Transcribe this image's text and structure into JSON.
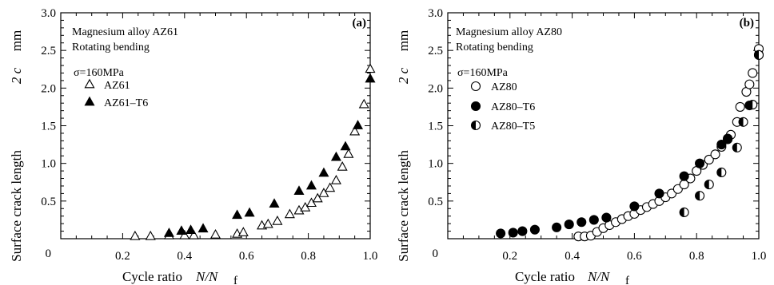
{
  "chart_data": [
    {
      "type": "scatter",
      "panel_label": "(a)",
      "xlabel": "Cycle ratio",
      "xlabel_var": "N/N",
      "xlabel_sub": "f",
      "ylabel": "Surface crack length",
      "ylabel_var": "2 c",
      "ylabel_unit": "mm",
      "xlim": [
        0,
        1.0
      ],
      "ylim": [
        0,
        3.0
      ],
      "x_ticks": [
        "0",
        "0.2",
        "0.4",
        "0.6",
        "0.8",
        "1.0"
      ],
      "y_ticks": [
        "0.5",
        "1.0",
        "1.5",
        "2.0",
        "2.5",
        "3.0"
      ],
      "grid": false,
      "legend_position": "top-left",
      "annotations": [
        "Magnesium alloy AZ61",
        "Rotating bending"
      ],
      "stress": "σ=160MPa",
      "series": [
        {
          "name": "AZ61",
          "marker": "triangle-open",
          "points": [
            [
              0.24,
              0.03
            ],
            [
              0.29,
              0.03
            ],
            [
              0.35,
              0.04
            ],
            [
              0.4,
              0.04
            ],
            [
              0.43,
              0.04
            ],
            [
              0.5,
              0.05
            ],
            [
              0.57,
              0.06
            ],
            [
              0.59,
              0.08
            ],
            [
              0.65,
              0.17
            ],
            [
              0.67,
              0.19
            ],
            [
              0.7,
              0.23
            ],
            [
              0.74,
              0.32
            ],
            [
              0.77,
              0.37
            ],
            [
              0.79,
              0.41
            ],
            [
              0.81,
              0.47
            ],
            [
              0.83,
              0.53
            ],
            [
              0.85,
              0.6
            ],
            [
              0.87,
              0.67
            ],
            [
              0.89,
              0.77
            ],
            [
              0.91,
              0.95
            ],
            [
              0.93,
              1.12
            ],
            [
              0.95,
              1.42
            ],
            [
              0.98,
              1.78
            ],
            [
              1.0,
              2.25
            ]
          ]
        },
        {
          "name": "AZ61–T6",
          "marker": "triangle-filled",
          "points": [
            [
              0.35,
              0.07
            ],
            [
              0.39,
              0.1
            ],
            [
              0.42,
              0.11
            ],
            [
              0.46,
              0.13
            ],
            [
              0.57,
              0.31
            ],
            [
              0.61,
              0.34
            ],
            [
              0.69,
              0.46
            ],
            [
              0.77,
              0.63
            ],
            [
              0.81,
              0.7
            ],
            [
              0.85,
              0.87
            ],
            [
              0.89,
              1.08
            ],
            [
              0.92,
              1.22
            ],
            [
              0.96,
              1.5
            ],
            [
              1.0,
              2.12
            ]
          ]
        }
      ]
    },
    {
      "type": "scatter",
      "panel_label": "(b)",
      "xlabel": "Cycle ratio",
      "xlabel_var": "N/N",
      "xlabel_sub": "f",
      "ylabel": "Surface crack length",
      "ylabel_var": "2 c",
      "ylabel_unit": "mm",
      "xlim": [
        0,
        1.0
      ],
      "ylim": [
        0,
        3.0
      ],
      "x_ticks": [
        "0",
        "0.2",
        "0.4",
        "0.6",
        "0.8",
        "1.0"
      ],
      "y_ticks": [
        "0.5",
        "1.0",
        "1.5",
        "2.0",
        "2.5",
        "3.0"
      ],
      "grid": false,
      "legend_position": "top-left",
      "annotations": [
        "Magnesium alloy AZ80",
        "Rotating bending"
      ],
      "stress": "σ=160MPa",
      "series": [
        {
          "name": "AZ80",
          "marker": "circle-open",
          "points": [
            [
              0.42,
              0.03
            ],
            [
              0.44,
              0.03
            ],
            [
              0.46,
              0.04
            ],
            [
              0.48,
              0.09
            ],
            [
              0.5,
              0.14
            ],
            [
              0.52,
              0.18
            ],
            [
              0.54,
              0.22
            ],
            [
              0.56,
              0.26
            ],
            [
              0.58,
              0.3
            ],
            [
              0.6,
              0.33
            ],
            [
              0.62,
              0.38
            ],
            [
              0.64,
              0.42
            ],
            [
              0.66,
              0.46
            ],
            [
              0.68,
              0.5
            ],
            [
              0.7,
              0.55
            ],
            [
              0.72,
              0.6
            ],
            [
              0.74,
              0.66
            ],
            [
              0.76,
              0.72
            ],
            [
              0.78,
              0.8
            ],
            [
              0.8,
              0.9
            ],
            [
              0.82,
              0.98
            ],
            [
              0.84,
              1.05
            ],
            [
              0.86,
              1.12
            ],
            [
              0.88,
              1.22
            ],
            [
              0.9,
              1.32
            ],
            [
              0.91,
              1.38
            ],
            [
              0.93,
              1.55
            ],
            [
              0.94,
              1.75
            ],
            [
              0.96,
              1.95
            ],
            [
              0.97,
              2.05
            ],
            [
              0.98,
              2.2
            ],
            [
              1.0,
              2.52
            ]
          ]
        },
        {
          "name": "AZ80–T6",
          "marker": "circle-filled",
          "points": [
            [
              0.17,
              0.07
            ],
            [
              0.21,
              0.08
            ],
            [
              0.24,
              0.1
            ],
            [
              0.28,
              0.12
            ],
            [
              0.35,
              0.15
            ],
            [
              0.39,
              0.19
            ],
            [
              0.43,
              0.22
            ],
            [
              0.47,
              0.25
            ],
            [
              0.51,
              0.28
            ],
            [
              0.6,
              0.43
            ],
            [
              0.68,
              0.6
            ],
            [
              0.76,
              0.83
            ],
            [
              0.81,
              1.0
            ],
            [
              0.88,
              1.25
            ],
            [
              0.9,
              1.33
            ],
            [
              0.97,
              1.77
            ],
            [
              1.0,
              2.44
            ]
          ]
        },
        {
          "name": "AZ80–T5",
          "marker": "circle-half",
          "points": [
            [
              0.76,
              0.35
            ],
            [
              0.81,
              0.57
            ],
            [
              0.84,
              0.72
            ],
            [
              0.88,
              0.88
            ],
            [
              0.93,
              1.21
            ],
            [
              0.95,
              1.55
            ],
            [
              0.98,
              1.78
            ],
            [
              1.0,
              2.44
            ]
          ]
        }
      ]
    }
  ]
}
